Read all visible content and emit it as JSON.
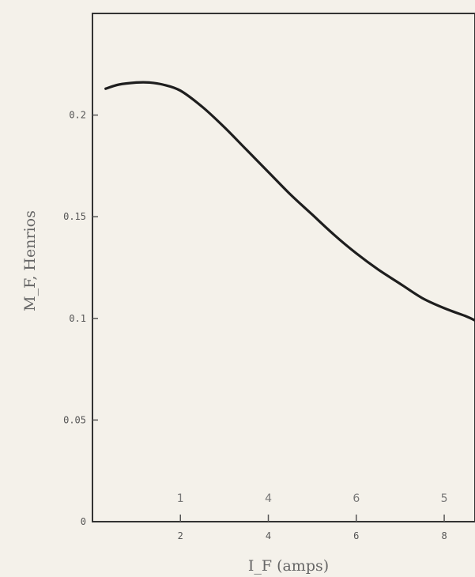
{
  "chart_data": {
    "type": "line",
    "title": "",
    "xlabel": "I_F (amps)",
    "ylabel": "M_F, Henrios",
    "xlim": [
      0,
      8.7
    ],
    "ylim": [
      0,
      0.25
    ],
    "x_ticks": [
      {
        "value": 2,
        "label": "2"
      },
      {
        "value": 4,
        "label": "4"
      },
      {
        "value": 6,
        "label": "6"
      },
      {
        "value": 8,
        "label": "8"
      }
    ],
    "y_ticks": [
      {
        "value": 0,
        "label": "0"
      },
      {
        "value": 0.05,
        "label": "0.05"
      },
      {
        "value": 0.1,
        "label": "0.1"
      },
      {
        "value": 0.15,
        "label": "0.15"
      },
      {
        "value": 0.2,
        "label": "0.2"
      }
    ],
    "grid": false,
    "series": [
      {
        "x": [
          0.3,
          0.6,
          1.0,
          1.3,
          1.6,
          2.0,
          2.5,
          3.0,
          3.5,
          4.0,
          4.5,
          5.0,
          5.5,
          6.0,
          6.5,
          7.0,
          7.5,
          8.0,
          8.5,
          8.7
        ],
        "y": [
          0.213,
          0.215,
          0.216,
          0.216,
          0.215,
          0.212,
          0.204,
          0.194,
          0.183,
          0.172,
          0.161,
          0.151,
          0.141,
          0.132,
          0.124,
          0.117,
          0.11,
          0.105,
          0.101,
          0.099
        ]
      }
    ],
    "annotations": [
      {
        "x": 2,
        "text": "1"
      },
      {
        "x": 4,
        "text": "4"
      },
      {
        "x": 6,
        "text": "6"
      },
      {
        "x": 8,
        "text": "5"
      }
    ]
  }
}
